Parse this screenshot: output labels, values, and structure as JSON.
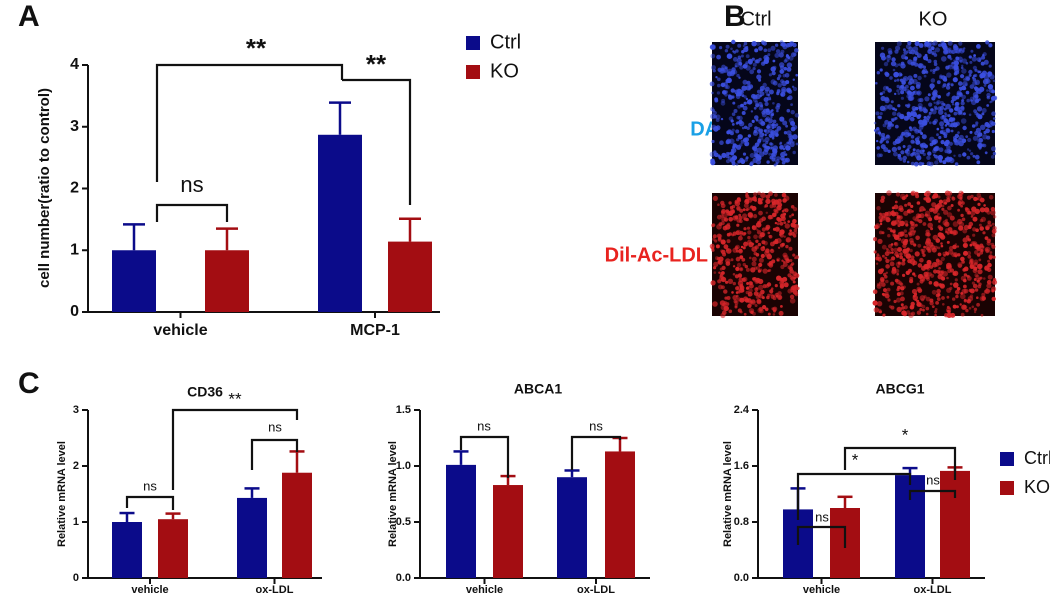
{
  "panels": [
    "A",
    "B",
    "C"
  ],
  "panel_b": {
    "columns": [
      "Ctrl",
      "KO"
    ],
    "rows": [
      "DAPI",
      "Dil-Ac-LDL"
    ]
  },
  "chart_data": [
    {
      "type": "bar",
      "ylabel": "cell number(ratio to control)",
      "categories": [
        "vehicle",
        "MCP-1"
      ],
      "series": [
        {
          "name": "Ctrl",
          "color": "#0b0b8a",
          "values": [
            1.0,
            2.87
          ],
          "errors": [
            0.42,
            0.52
          ]
        },
        {
          "name": "KO",
          "color": "#a30d12",
          "values": [
            1.0,
            1.14
          ],
          "errors": [
            0.35,
            0.37
          ]
        }
      ],
      "ylim": [
        0,
        4
      ],
      "yticks": [
        0,
        1,
        2,
        3,
        4
      ],
      "legend": true,
      "annotations": [
        "ns",
        "**",
        "**"
      ]
    },
    {
      "type": "bar",
      "title": "CD36",
      "ylabel": "Relative mRNA level",
      "categories": [
        "vehicle",
        "ox-LDL"
      ],
      "series": [
        {
          "name": "Ctrl",
          "color": "#0b0b8a",
          "values": [
            1.0,
            1.43
          ],
          "errors": [
            0.16,
            0.17
          ]
        },
        {
          "name": "KO",
          "color": "#a30d12",
          "values": [
            1.05,
            1.88
          ],
          "errors": [
            0.1,
            0.38
          ]
        }
      ],
      "ylim": [
        0,
        3
      ],
      "yticks": [
        0,
        1,
        2,
        3
      ],
      "legend": false,
      "annotations": [
        "ns",
        "ns",
        "**"
      ]
    },
    {
      "type": "bar",
      "title": "ABCA1",
      "ylabel": "Relative mRNA level",
      "categories": [
        "vehicle",
        "ox-LDL"
      ],
      "series": [
        {
          "name": "Ctrl",
          "color": "#0b0b8a",
          "values": [
            1.01,
            0.9
          ],
          "errors": [
            0.12,
            0.06
          ]
        },
        {
          "name": "KO",
          "color": "#a30d12",
          "values": [
            0.83,
            1.13
          ],
          "errors": [
            0.08,
            0.12
          ]
        }
      ],
      "ylim": [
        0,
        1.5
      ],
      "yticks": [
        {
          "value": 0,
          "label": "0.0"
        },
        {
          "value": 0.5,
          "label": "0.5"
        },
        {
          "value": 1,
          "label": "1.0"
        },
        {
          "value": 1.5,
          "label": "1.5"
        }
      ],
      "legend": false,
      "annotations": [
        "ns",
        "ns"
      ]
    },
    {
      "type": "bar",
      "title": "ABCG1",
      "ylabel": "Relative mRNA level",
      "categories": [
        "vehicle",
        "ox-LDL"
      ],
      "series": [
        {
          "name": "Ctrl",
          "color": "#0b0b8a",
          "values": [
            0.98,
            1.47
          ],
          "errors": [
            0.3,
            0.1
          ]
        },
        {
          "name": "KO",
          "color": "#a30d12",
          "values": [
            1.0,
            1.53
          ],
          "errors": [
            0.16,
            0.05
          ]
        }
      ],
      "ylim": [
        0,
        2.4
      ],
      "yticks": [
        {
          "value": 0,
          "label": "0.0"
        },
        {
          "value": 0.8,
          "label": "0.8"
        },
        {
          "value": 1.6,
          "label": "1.6"
        },
        {
          "value": 2.4,
          "label": "2.4"
        }
      ],
      "legend": true,
      "annotations": [
        "ns",
        "ns",
        "*",
        "*"
      ]
    }
  ]
}
